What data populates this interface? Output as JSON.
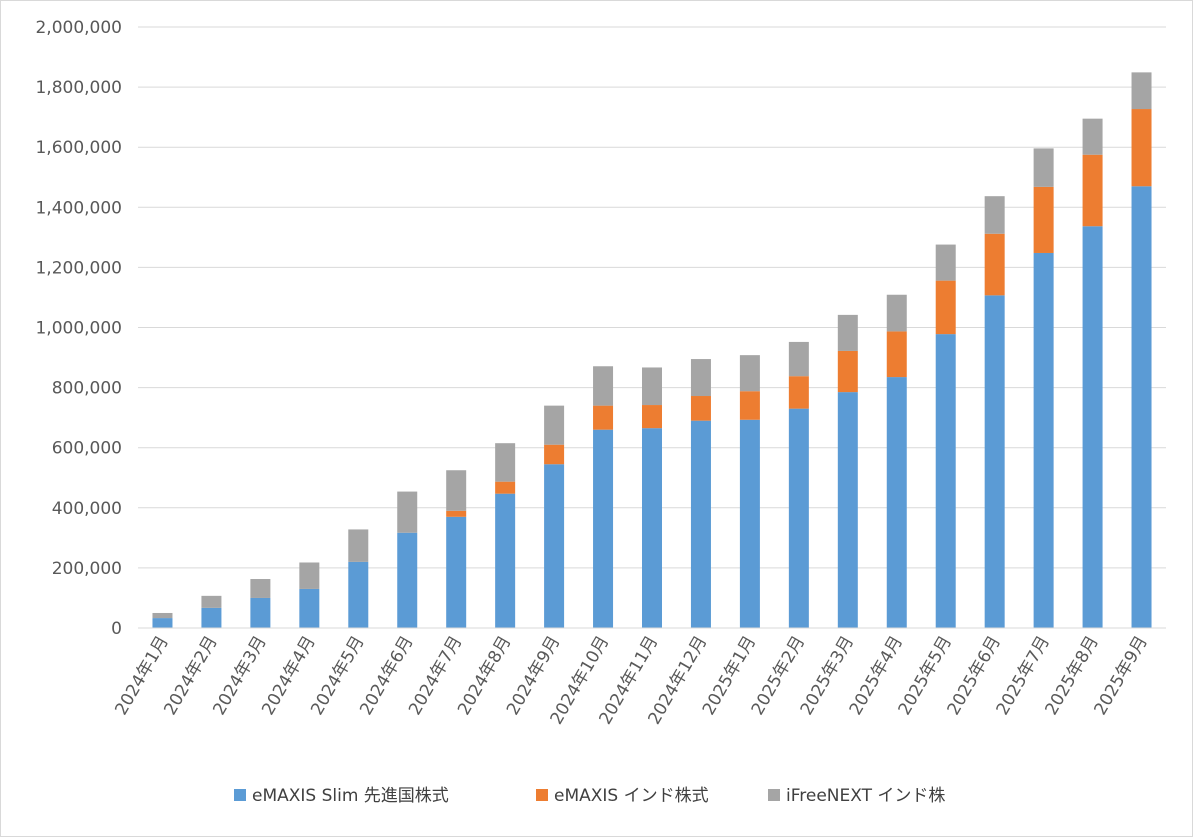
{
  "chart_data": {
    "type": "bar",
    "stacked": true,
    "categories": [
      "2024年1月",
      "2024年2月",
      "2024年3月",
      "2024年4月",
      "2024年5月",
      "2024年6月",
      "2024年7月",
      "2024年8月",
      "2024年9月",
      "2024年10月",
      "2024年11月",
      "2024年12月",
      "2025年1月",
      "2025年2月",
      "2025年3月",
      "2025年4月",
      "2025年5月",
      "2025年6月",
      "2025年7月",
      "2025年8月",
      "2025年9月"
    ],
    "series": [
      {
        "name": "eMAXIS Slim 先進国株式",
        "color": "#5b9bd5",
        "values": [
          33000,
          67000,
          100000,
          130000,
          220000,
          317000,
          370000,
          447000,
          545000,
          660000,
          665000,
          690000,
          693000,
          730000,
          785000,
          835000,
          978000,
          1107000,
          1248000,
          1337000,
          1470000
        ]
      },
      {
        "name": "eMAXIS インド株式",
        "color": "#ed7d31",
        "values": [
          0,
          0,
          0,
          0,
          0,
          0,
          20000,
          40000,
          65000,
          80000,
          77000,
          82000,
          95000,
          108000,
          137000,
          152000,
          178000,
          205000,
          220000,
          238000,
          257000
        ]
      },
      {
        "name": "iFreeNEXT インド株",
        "color": "#a5a5a5",
        "values": [
          17000,
          40000,
          63000,
          88000,
          108000,
          137000,
          135000,
          128000,
          130000,
          131000,
          125000,
          123000,
          120000,
          114000,
          120000,
          122000,
          120000,
          125000,
          128000,
          120000,
          122000
        ]
      }
    ],
    "yticks": [
      "0",
      "200,000",
      "400,000",
      "600,000",
      "800,000",
      "1,000,000",
      "1,200,000",
      "1,400,000",
      "1,600,000",
      "1,800,000",
      "2,000,000"
    ],
    "ylim": [
      0,
      2000000
    ],
    "grid": true,
    "legend_position": "bottom",
    "title": "",
    "xlabel": "",
    "ylabel": ""
  }
}
